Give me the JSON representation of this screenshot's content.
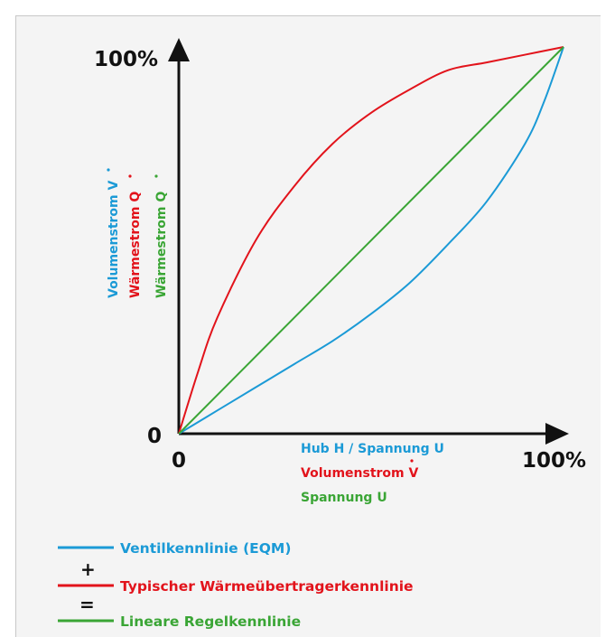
{
  "colors": {
    "blue": "#1b9ad6",
    "red": "#e2131b",
    "green": "#3aa535",
    "axis": "#111111",
    "panel": "#f4f4f4"
  },
  "y_axis": {
    "top_label": "100%",
    "zero_label": "0",
    "labels": [
      {
        "text": "Volumenstrom V",
        "color": "#1b9ad6"
      },
      {
        "text": "Wärmestrom Q",
        "color": "#e2131b"
      },
      {
        "text": "Wärmestrom Q",
        "color": "#3aa535"
      }
    ]
  },
  "x_axis": {
    "zero_label": "0",
    "end_label": "100%",
    "labels": [
      {
        "text": "Hub H / Spannung U",
        "color": "#1b9ad6"
      },
      {
        "text": "Volumenstrom V",
        "color": "#e2131b"
      },
      {
        "text": "Spannung U",
        "color": "#3aa535"
      }
    ]
  },
  "legend": {
    "plus": "+",
    "equals": "=",
    "items": [
      {
        "text": "Ventilkennlinie (EQM)",
        "color": "#1b9ad6"
      },
      {
        "text": "Typischer Wärmeübertragerkennlinie",
        "color": "#e2131b"
      },
      {
        "text": "Lineare Regelkennlinie",
        "color": "#3aa535"
      }
    ]
  },
  "chart_data": {
    "type": "line",
    "xlim": [
      0,
      100
    ],
    "ylim": [
      0,
      100
    ],
    "grid": false,
    "legend_position": "bottom-left",
    "series": [
      {
        "name": "Ventilkennlinie (EQM)",
        "color": "#1b9ad6",
        "x": [
          0,
          10,
          20,
          30,
          40,
          50,
          60,
          70,
          80,
          90,
          95,
          100
        ],
        "y": [
          0,
          6,
          12,
          18,
          24,
          31,
          39,
          49,
          60,
          75,
          86,
          100
        ]
      },
      {
        "name": "Typischer Wärmeübertragerkennlinie",
        "color": "#e2131b",
        "x": [
          0,
          5,
          10,
          20,
          30,
          40,
          50,
          60,
          70,
          80,
          90,
          100
        ],
        "y": [
          0,
          16,
          30,
          50,
          64,
          75,
          83,
          89,
          94,
          96,
          98,
          100
        ]
      },
      {
        "name": "Lineare Regelkennlinie",
        "color": "#3aa535",
        "x": [
          0,
          100
        ],
        "y": [
          0,
          100
        ]
      }
    ]
  }
}
